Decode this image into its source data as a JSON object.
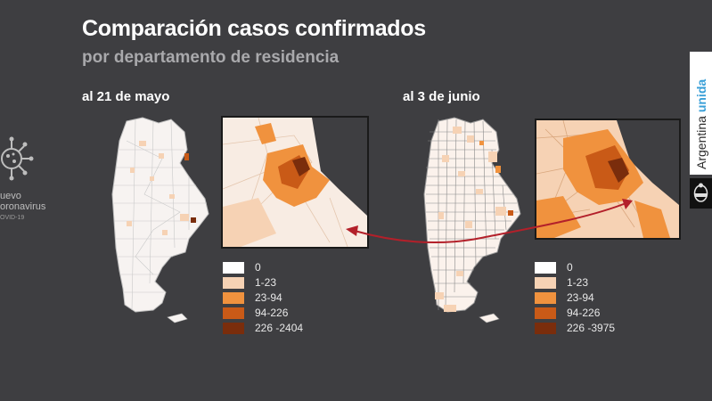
{
  "header": {
    "title": "Comparación casos confirmados",
    "subtitle": "por departamento de residencia"
  },
  "maps": [
    {
      "label": "al 21 de mayo"
    },
    {
      "label": "al 3 de junio"
    }
  ],
  "logo": {
    "line1": "uevo",
    "line2": "oronavirus",
    "line3": "OVID-19"
  },
  "legend_left": [
    {
      "label": "0",
      "color": "#ffffff"
    },
    {
      "label": "1-23",
      "color": "#f6d2b4"
    },
    {
      "label": "23-94",
      "color": "#f0923e"
    },
    {
      "label": "94-226",
      "color": "#c95a17"
    },
    {
      "label": "226 -2404",
      "color": "#7a2d0c"
    }
  ],
  "legend_right": [
    {
      "label": "0",
      "color": "#ffffff"
    },
    {
      "label": "1-23",
      "color": "#f6d2b4"
    },
    {
      "label": "23-94",
      "color": "#f0923e"
    },
    {
      "label": "94-226",
      "color": "#c95a17"
    },
    {
      "label": "226 -3975",
      "color": "#7a2d0c"
    }
  ],
  "brand": {
    "text_regular": "Argentina ",
    "text_bold": "unida",
    "accent": "#3aa0d8"
  },
  "arrow_color": "#b3202a"
}
